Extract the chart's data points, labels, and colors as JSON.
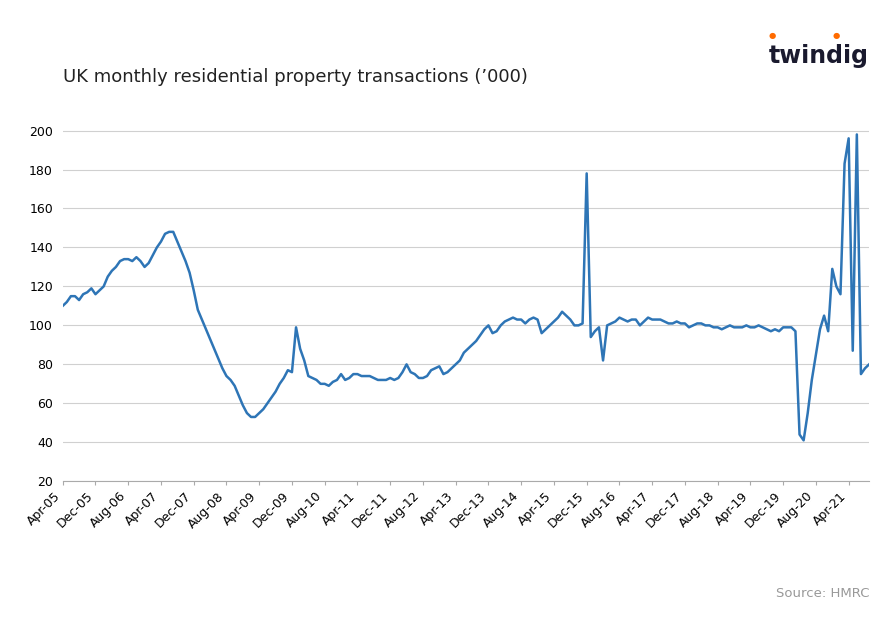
{
  "title": "UK monthly residential property transactions (’000)",
  "source_text": "Source: HMRC",
  "twindig_text": "twindig",
  "line_color": "#2E75B6",
  "background_color": "#FFFFFF",
  "ylim": [
    20,
    210
  ],
  "yticks": [
    20,
    40,
    60,
    80,
    100,
    120,
    140,
    160,
    180,
    200
  ],
  "values": [
    110,
    112,
    115,
    115,
    113,
    116,
    117,
    119,
    116,
    118,
    120,
    125,
    128,
    130,
    133,
    134,
    134,
    133,
    135,
    133,
    130,
    132,
    136,
    140,
    143,
    147,
    148,
    148,
    143,
    138,
    133,
    127,
    118,
    108,
    103,
    98,
    93,
    88,
    83,
    78,
    74,
    72,
    69,
    64,
    59,
    55,
    53,
    53,
    55,
    57,
    60,
    63,
    66,
    70,
    73,
    77,
    76,
    99,
    88,
    82,
    74,
    73,
    72,
    70,
    70,
    69,
    71,
    72,
    75,
    72,
    73,
    75,
    75,
    74,
    74,
    74,
    73,
    72,
    72,
    72,
    73,
    72,
    73,
    76,
    80,
    76,
    75,
    73,
    73,
    74,
    77,
    78,
    79,
    75,
    76,
    78,
    80,
    82,
    86,
    88,
    90,
    92,
    95,
    98,
    100,
    96,
    97,
    100,
    102,
    103,
    104,
    103,
    103,
    101,
    103,
    104,
    103,
    96,
    98,
    100,
    102,
    104,
    107,
    105,
    103,
    100,
    100,
    101,
    178,
    94,
    97,
    99,
    82,
    100,
    101,
    102,
    104,
    103,
    102,
    103,
    103,
    100,
    102,
    104,
    103,
    103,
    103,
    102,
    101,
    101,
    102,
    101,
    101,
    99,
    100,
    101,
    101,
    100,
    100,
    99,
    99,
    98,
    99,
    100,
    99,
    99,
    99,
    100,
    99,
    99,
    100,
    99,
    98,
    97,
    98,
    97,
    99,
    99,
    99,
    97,
    44,
    41,
    55,
    72,
    85,
    98,
    105,
    97,
    129,
    120,
    116,
    183,
    196,
    87,
    198,
    75,
    78,
    80
  ],
  "xtick_labels": [
    "Apr-05",
    "Dec-05",
    "Aug-06",
    "Apr-07",
    "Dec-07",
    "Aug-08",
    "Apr-09",
    "Dec-09",
    "Aug-10",
    "Apr-11",
    "Dec-11",
    "Aug-12",
    "Apr-13",
    "Dec-13",
    "Aug-14",
    "Apr-15",
    "Dec-15",
    "Aug-16",
    "Apr-17",
    "Dec-17",
    "Aug-18",
    "Apr-19",
    "Dec-19",
    "Aug-20",
    "Apr-21"
  ],
  "xtick_positions": [
    0,
    8,
    16,
    24,
    32,
    40,
    48,
    56,
    64,
    72,
    80,
    88,
    96,
    104,
    112,
    120,
    128,
    136,
    144,
    152,
    160,
    168,
    176,
    184,
    192
  ],
  "title_fontsize": 13,
  "tick_fontsize": 9,
  "source_fontsize": 9.5,
  "twindig_fontsize": 17,
  "twindig_color": "#1a1a2e",
  "dot_color": "#FF6B00",
  "grid_color": "#D0D0D0",
  "spine_color": "#AAAAAA",
  "source_color": "#999999"
}
